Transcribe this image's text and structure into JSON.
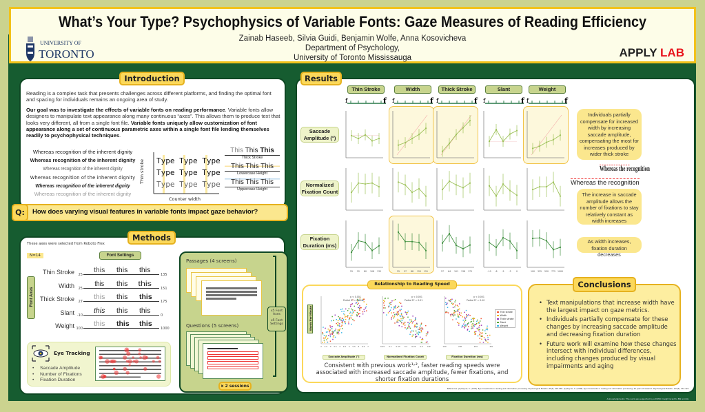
{
  "header": {
    "title": "What’s Your Type? Psychophysics of Variable Fonts: Gaze Measures of Reading Efficiency",
    "authors": "Zainab Haseeb, Silvia Guidi, Benjamin Wolfe, Anna Kosovicheva",
    "department": "Department of Psychology,",
    "institution": "University of Toronto Mississauga",
    "logo_text_top": "UNIVERSITY OF",
    "logo_text_bottom": "TORONTO",
    "lab_name_part1": "APPLY",
    "lab_name_part2": "LAB",
    "colors": {
      "accent_yellow": "#f2c21a",
      "dark_green": "#165c30",
      "olive": "#cbd38f",
      "lab_red": "#e8131b"
    }
  },
  "introduction": {
    "heading": "Introduction",
    "para1": "Reading is a complex task that presents challenges across different platforms, and finding the optimal font and spacing for individuals remains an ongoing area of study.",
    "para2_bold": "Our goal was to investigate the effects of variable fonts on reading performance",
    "para2_rest": ". Variable fonts allow designers to manipulate text appearance along many continuous “axes”. This allows them to produce text that looks very different, all from a single font file. ",
    "para2_bold2": "Variable fonts uniquely allow customization of font appearance along a set of continuous parametric axes within a single font file lending themselves readily to psychophysical techniques",
    "para2_end": ".",
    "sample_sentence": "Whereas recognition of the inherent dignity",
    "type_word": "Type",
    "grid_ylabel": "Thin stroke",
    "grid_xlabel": "Counter width",
    "this_word": "This",
    "this_labels": [
      "Thick Stroke",
      "Lowercase Height",
      "Uppercase Height"
    ]
  },
  "question": {
    "prefix": "Q:",
    "text": "How does varying visual features in variable fonts impact gaze behavior?"
  },
  "methods": {
    "heading": "Methods",
    "note": "These axes were selected from Roboto Flex",
    "n": "N=14",
    "font_settings": "Font Settings",
    "font_axes": "Font Axes",
    "sample_word": "this",
    "axes": [
      {
        "name": "Thin Stroke",
        "min": "25",
        "max": "135"
      },
      {
        "name": "Width",
        "min": "25",
        "max": "151"
      },
      {
        "name": "Thick Stroke",
        "min": "27",
        "max": "175"
      },
      {
        "name": "Slant",
        "min": "-10",
        "max": "0"
      },
      {
        "name": "Weight",
        "min": "100",
        "max": "1000"
      }
    ],
    "eye_tracking": "Eye Tracking",
    "measures": [
      "Saccade Amplitude",
      "Number of Fixations",
      "Fixation Duration"
    ],
    "passages": "Passages (4 screens)",
    "questions": "Questions  (5 screens)",
    "multiplier1": "x5 Font Axes",
    "multiplier2": "x5 Font Settings",
    "sessions": "x 2 sessions"
  },
  "results": {
    "heading": "Results",
    "columns": [
      "Thin Stroke",
      "Width",
      "Thick Stroke",
      "Slant",
      "Weight"
    ],
    "rows": [
      "Saccade Amplitude (°)",
      "Normalized Fixation Count",
      "Fixation Duration (ms)"
    ],
    "callouts": [
      "Individuals partially compensate for increased width by increasing saccade amplitude, compensating the most for increases produced by wider thick stroke",
      "The increase in saccade amplitude allows the number of fixations to stay relatively constant as width increases",
      "As width increases, fixation duration decreases"
    ],
    "example_text": "Whereas the recognition",
    "relationship_heading": "Relationship to Reading Speed",
    "relationship_summary": "Consistent with previous work¹˒², faster reading speeds were associated with increased saccade amplitude, fewer fixations, and shorter fixation durations",
    "references": "References: [1] Rayner, K. (1978). Eye movements in reading and information processing. Psychological Bulletin, 85(3), 618–660. [2] Rayner, K. (1998). Eye movements in reading and information processing: 20 years of research. Psychological Bulletin, 124(3), 372–422.",
    "acknowledgments": "Acknowledgments: This work was supported by a SSHRC Insight Grant to BW and AK."
  },
  "conclusions": {
    "heading": "Conclusions",
    "bullets": [
      "Text manipulations that increase width have the largest impact on gaze metrics.",
      "Individuals partially compensate for these changes by increasing saccade amplitude and decreasing fixation duration",
      "Future work will examine how these changes intersect with individual differences, including changes produced by visual impairments and aging"
    ]
  },
  "chart_data": [
    {
      "type": "line",
      "title": "Saccade Amplitude (°)",
      "ylim": [
        3,
        6
      ],
      "error_approx": 0.35,
      "highlighted": [
        "Width",
        "Thick Stroke",
        "Weight"
      ],
      "series": [
        {
          "name": "Thin Stroke",
          "x": [
            25,
            52,
            80,
            108,
            135
          ],
          "values": [
            4.42,
            4.23,
            4.47,
            4.08,
            4.23
          ]
        },
        {
          "name": "Width",
          "x": [
            25,
            57,
            88,
            120,
            151
          ],
          "values": [
            3.81,
            3.97,
            4.23,
            4.49,
            4.89
          ]
        },
        {
          "name": "Thick Stroke",
          "x": [
            27,
            64,
            101,
            138,
            175
          ],
          "values": [
            3.41,
            3.92,
            4.49,
            4.92,
            5.38
          ]
        },
        {
          "name": "Slant",
          "x": [
            -10,
            -8,
            -5,
            -3,
            0
          ],
          "values": [
            4.05,
            4.81,
            4.05,
            4.52,
            4.74
          ]
        },
        {
          "name": "Weight",
          "x": [
            100,
            325,
            550,
            775,
            1000
          ],
          "values": [
            3.6,
            3.74,
            3.99,
            4.16,
            4.45
          ]
        }
      ]
    },
    {
      "type": "line",
      "title": "Normalized Fixation Count",
      "ylim": [
        0.165,
        0.21
      ],
      "error_approx": 0.011,
      "highlighted": [],
      "series": [
        {
          "name": "Thin Stroke",
          "x": [
            25,
            52,
            80,
            108,
            135
          ],
          "values": [
            0.184,
            0.194,
            0.193,
            0.194,
            0.19
          ]
        },
        {
          "name": "Width",
          "x": [
            25,
            57,
            88,
            120,
            151
          ],
          "values": [
            0.195,
            0.192,
            0.184,
            0.188,
            0.18
          ]
        },
        {
          "name": "Thick Stroke",
          "x": [
            27,
            64,
            101,
            138,
            175
          ],
          "values": [
            0.187,
            0.196,
            0.192,
            0.189,
            0.194
          ]
        },
        {
          "name": "Slant",
          "x": [
            -10,
            -8,
            -5,
            -3,
            0
          ],
          "values": [
            0.191,
            0.18,
            0.193,
            0.186,
            0.181
          ]
        },
        {
          "name": "Weight",
          "x": [
            100,
            325,
            550,
            775,
            1000
          ],
          "values": [
            0.187,
            0.19,
            0.19,
            0.195,
            0.18
          ]
        }
      ]
    },
    {
      "type": "line",
      "title": "Fixation Duration (ms)",
      "ylim": [
        200,
        225
      ],
      "error_approx": 4.5,
      "highlighted": [
        "Width"
      ],
      "series": [
        {
          "name": "Thin Stroke",
          "x": [
            25,
            52,
            80,
            108,
            135
          ],
          "values": [
            208,
            214.2,
            213.3,
            208.9,
            211.5
          ]
        },
        {
          "name": "Width",
          "x": [
            25,
            57,
            88,
            120,
            151
          ],
          "values": [
            218.8,
            213.7,
            213.7,
            213.3,
            208.9
          ]
        },
        {
          "name": "Thick Stroke",
          "x": [
            27,
            64,
            101,
            138,
            175
          ],
          "values": [
            212.9,
            218,
            211.7,
            209.9,
            211.9
          ]
        },
        {
          "name": "Slant",
          "x": [
            -10,
            -8,
            -5,
            -3,
            0
          ],
          "values": [
            213.2,
            210.6,
            215.8,
            214,
            208.9
          ]
        },
        {
          "name": "Weight",
          "x": [
            100,
            325,
            550,
            775,
            1000
          ],
          "values": [
            215.4,
            215.7,
            214.2,
            209.4,
            210.7
          ]
        }
      ]
    },
    {
      "type": "scatter",
      "ylabel": "Words Per Minute",
      "ylim": [
        100,
        350
      ],
      "legend": [
        "Thin stroke",
        "Width",
        "Thick stroke",
        "Slant",
        "Weight"
      ],
      "legend_colors": [
        "#f05a3a",
        "#f2b21a",
        "#9b3bb8",
        "#5aa83a",
        "#3ab8e8"
      ],
      "legend_placement": "right",
      "panels": [
        {
          "xlabel": "Saccade Amplitude (°)",
          "xlim": [
            2,
            7
          ],
          "xticks": [
            "2",
            "2.5",
            "3",
            "3.5",
            "4",
            "4.5",
            "5",
            "5.5",
            "6",
            "6.5",
            "7"
          ],
          "stat_p": "p < 0.001",
          "stat_r2": "Partial R² = 0.096",
          "trend": "positive"
        },
        {
          "xlabel": "Normalized Fixation Count",
          "xlim": [
            0.05,
            0.35
          ],
          "xticks": [
            "0.05",
            "0.1",
            "0.15",
            "0.2",
            "0.25",
            "0.3",
            "0.35"
          ],
          "stat_p": "p < 0.001",
          "stat_r2": "Partial R² = 0.21",
          "trend": "negative"
        },
        {
          "xlabel": "Fixation Duration (ms)",
          "xlim": [
            100,
            300
          ],
          "xticks": [
            "100",
            "200",
            "250",
            "300"
          ],
          "stat_p": "p < 0.001",
          "stat_r2": "Partial R² = 0.10",
          "trend": "negative"
        }
      ]
    }
  ]
}
